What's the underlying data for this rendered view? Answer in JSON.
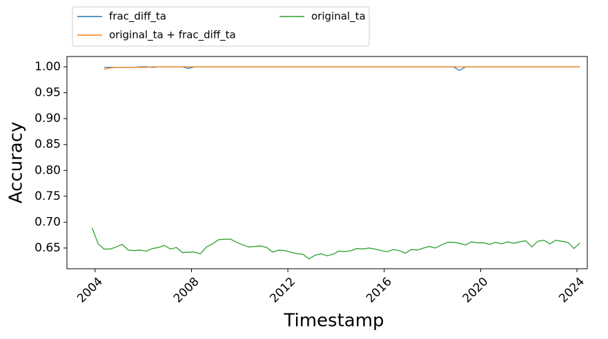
{
  "chart_data": {
    "type": "line",
    "xlabel": "Timestamp",
    "ylabel": "Accuracy",
    "x": [
      2003.875,
      2004.125,
      2004.375,
      2004.625,
      2004.875,
      2005.125,
      2005.375,
      2005.625,
      2005.875,
      2006.125,
      2006.375,
      2006.625,
      2006.875,
      2007.125,
      2007.375,
      2007.625,
      2007.875,
      2008.125,
      2008.375,
      2008.625,
      2008.875,
      2009.125,
      2009.375,
      2009.625,
      2009.875,
      2010.125,
      2010.375,
      2010.625,
      2010.875,
      2011.125,
      2011.375,
      2011.625,
      2011.875,
      2012.125,
      2012.375,
      2012.625,
      2012.875,
      2013.125,
      2013.375,
      2013.625,
      2013.875,
      2014.125,
      2014.375,
      2014.625,
      2014.875,
      2015.125,
      2015.375,
      2015.625,
      2015.875,
      2016.125,
      2016.375,
      2016.625,
      2016.875,
      2017.125,
      2017.375,
      2017.625,
      2017.875,
      2018.125,
      2018.375,
      2018.625,
      2018.875,
      2019.125,
      2019.375,
      2019.625,
      2019.875,
      2020.125,
      2020.375,
      2020.625,
      2020.875,
      2021.125,
      2021.375,
      2021.625,
      2021.875,
      2022.125,
      2022.375,
      2022.625,
      2022.875,
      2023.125,
      2023.375,
      2023.625,
      2023.875,
      2024.125
    ],
    "series": [
      {
        "name": "frac_diff_ta",
        "color": "#1f77b4",
        "values": [
          null,
          null,
          0.999,
          0.999,
          0.999,
          0.999,
          0.999,
          0.999,
          1.0,
          1.0,
          0.999,
          1.0,
          1.0,
          1.0,
          1.0,
          1.0,
          0.997,
          1.0,
          1.0,
          1.0,
          1.0,
          1.0,
          1.0,
          1.0,
          1.0,
          1.0,
          1.0,
          1.0,
          1.0,
          1.0,
          1.0,
          1.0,
          1.0,
          1.0,
          1.0,
          1.0,
          1.0,
          1.0,
          1.0,
          1.0,
          1.0,
          1.0,
          1.0,
          1.0,
          1.0,
          1.0,
          1.0,
          1.0,
          1.0,
          1.0,
          1.0,
          1.0,
          1.0,
          1.0,
          1.0,
          1.0,
          1.0,
          1.0,
          1.0,
          1.0,
          1.0,
          0.993,
          1.0,
          1.0,
          1.0,
          1.0,
          1.0,
          1.0,
          1.0,
          1.0,
          1.0,
          1.0,
          1.0,
          1.0,
          1.0,
          1.0,
          1.0,
          1.0,
          1.0,
          1.0,
          1.0,
          1.0
        ]
      },
      {
        "name": "original_ta + frac_diff_ta",
        "color": "#ff7f0e",
        "values": [
          null,
          null,
          0.995,
          0.998,
          0.999,
          0.999,
          0.999,
          0.999,
          0.999,
          0.999,
          1.0,
          1.0,
          1.0,
          1.0,
          1.0,
          1.0,
          1.0,
          1.0,
          1.0,
          1.0,
          1.0,
          1.0,
          1.0,
          1.0,
          1.0,
          1.0,
          1.0,
          1.0,
          1.0,
          1.0,
          1.0,
          1.0,
          1.0,
          1.0,
          1.0,
          1.0,
          1.0,
          1.0,
          1.0,
          1.0,
          1.0,
          1.0,
          1.0,
          1.0,
          1.0,
          1.0,
          1.0,
          1.0,
          1.0,
          1.0,
          1.0,
          1.0,
          1.0,
          1.0,
          1.0,
          1.0,
          1.0,
          1.0,
          1.0,
          1.0,
          1.0,
          1.0,
          1.0,
          1.0,
          1.0,
          1.0,
          1.0,
          1.0,
          1.0,
          1.0,
          1.0,
          1.0,
          1.0,
          1.0,
          1.0,
          1.0,
          1.0,
          1.0,
          1.0,
          1.0,
          1.0,
          1.0
        ]
      },
      {
        "name": "original_ta",
        "color": "#2ca02c",
        "values": [
          0.689,
          0.658,
          0.648,
          0.648,
          0.652,
          0.657,
          0.646,
          0.645,
          0.646,
          0.644,
          0.649,
          0.651,
          0.655,
          0.648,
          0.651,
          0.641,
          0.642,
          0.642,
          0.639,
          0.652,
          0.658,
          0.666,
          0.667,
          0.667,
          0.661,
          0.656,
          0.652,
          0.653,
          0.654,
          0.651,
          0.642,
          0.646,
          0.645,
          0.642,
          0.639,
          0.638,
          0.629,
          0.636,
          0.639,
          0.635,
          0.638,
          0.644,
          0.643,
          0.645,
          0.649,
          0.648,
          0.65,
          0.648,
          0.645,
          0.643,
          0.647,
          0.645,
          0.64,
          0.647,
          0.646,
          0.65,
          0.653,
          0.65,
          0.656,
          0.661,
          0.661,
          0.659,
          0.656,
          0.662,
          0.66,
          0.66,
          0.657,
          0.661,
          0.658,
          0.662,
          0.659,
          0.662,
          0.664,
          0.652,
          0.663,
          0.665,
          0.658,
          0.665,
          0.663,
          0.661,
          0.649,
          0.66
        ]
      }
    ],
    "xlim": [
      2002.83,
      2024.43
    ],
    "xticks": [
      2004,
      2008,
      2012,
      2016,
      2020,
      2024
    ],
    "ylim": [
      0.61,
      1.02
    ],
    "yticks": [
      0.65,
      {
        "value": 0.7,
        "label": "0.70"
      },
      0.75,
      {
        "value": 0.8,
        "label": "0.80"
      },
      0.85,
      {
        "value": 0.9,
        "label": "0.90"
      },
      0.95,
      {
        "value": 1.0,
        "label": "1.00"
      }
    ],
    "legend": "upper left outside"
  }
}
